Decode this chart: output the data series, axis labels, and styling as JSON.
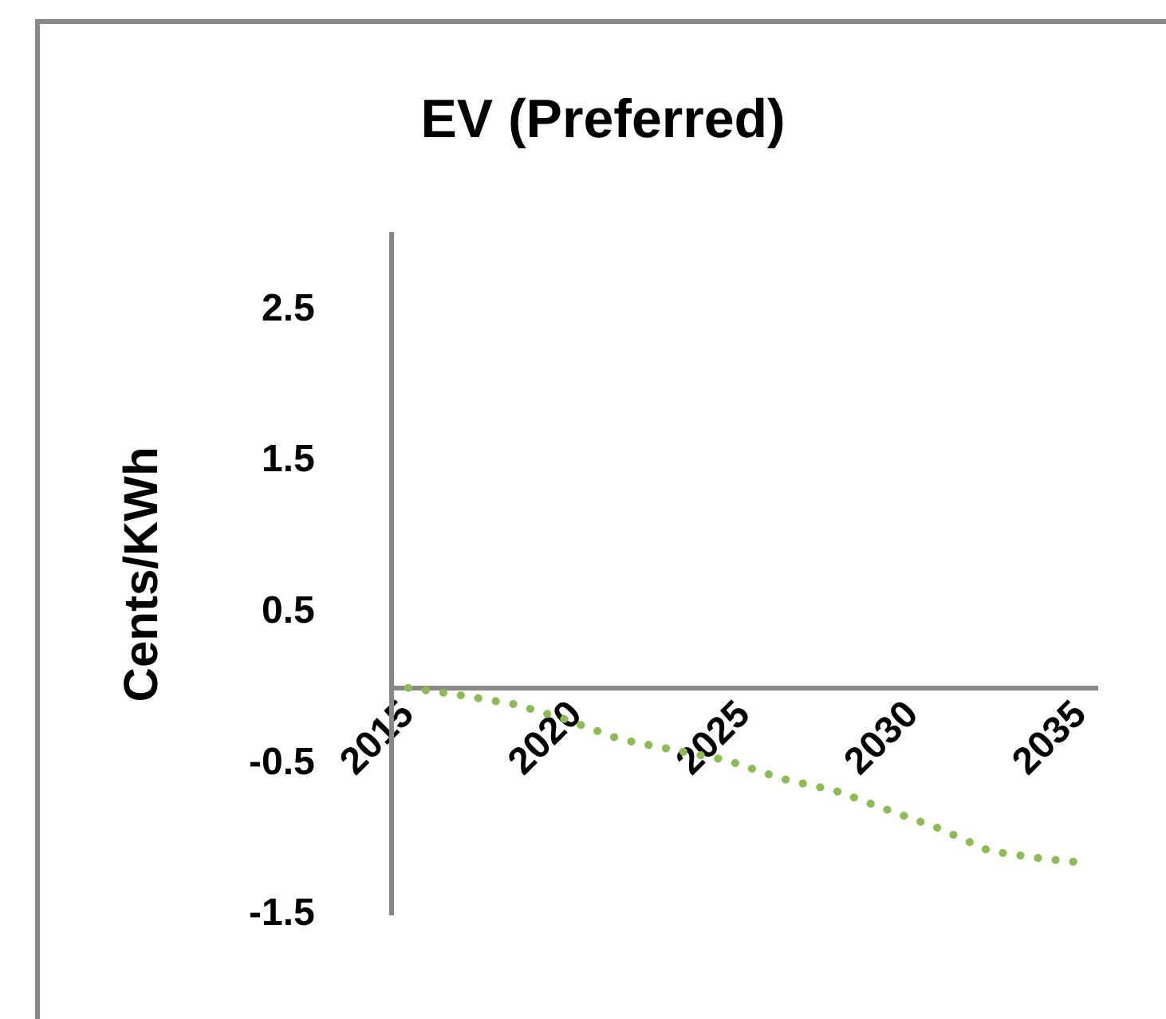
{
  "chart_data": {
    "type": "line",
    "title": "EV (Preferred)",
    "ylabel": "Cents/KWh",
    "x": [
      2015,
      2016.6,
      2018.2,
      2019.7,
      2021.3,
      2022.9,
      2024.5,
      2026.1,
      2027.7,
      2029.3,
      2030.8,
      2032.3,
      2033.9,
      2034.8
    ],
    "series": [
      {
        "color": "#8dbd52",
        "values": [
          0,
          -0.05,
          -0.11,
          -0.21,
          -0.34,
          -0.41,
          -0.48,
          -0.6,
          -0.68,
          -0.81,
          -0.93,
          -1.08,
          -1.13,
          -1.15
        ]
      }
    ],
    "xlim": [
      2014.5,
      2035.5
    ],
    "xticks": [
      2015,
      2020,
      2025,
      2030,
      2035
    ],
    "ylim": [
      -1.5,
      3
    ],
    "yticks": [
      -1.5,
      -0.5,
      0.5,
      1.5,
      2.5
    ],
    "grid": false,
    "legend": false,
    "marker": "none",
    "line_style": "dotted"
  }
}
